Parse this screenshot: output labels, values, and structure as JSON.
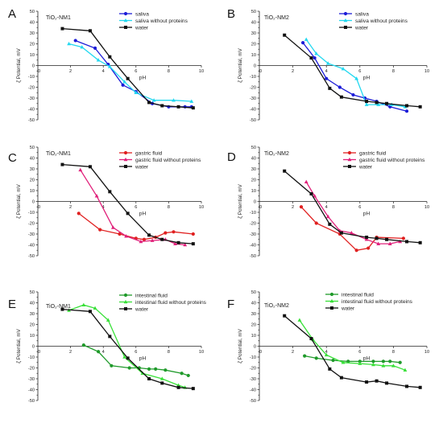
{
  "colors": {
    "saliva": "#1c1cd8",
    "saliva_np": "#22d8f0",
    "water": "#111111",
    "gastric": "#e02020",
    "gastric_np": "#e0207a",
    "intestinal": "#1f9a2a",
    "intestinal_np": "#38e038"
  },
  "chart_data": [
    {
      "type": "line",
      "letter": "A",
      "title": "TiO₂-NM1",
      "xlabel": "pH",
      "ylabel": "ζ Potential, mV",
      "xlim": [
        0,
        10
      ],
      "ylim": [
        -50,
        50
      ],
      "xticks": [
        2,
        4,
        6,
        8,
        10
      ],
      "yticks": [
        -50,
        -40,
        -30,
        -20,
        -10,
        0,
        10,
        20,
        30,
        40,
        50
      ],
      "series": [
        {
          "name": "saliva",
          "color": "#1c1cd8",
          "marker": "circle",
          "x": [
            2.3,
            3.5,
            4.3,
            5.2,
            6.0,
            7.0,
            8.0,
            9.0,
            9.4
          ],
          "y": [
            23,
            16,
            1,
            -18,
            -24,
            -35,
            -38,
            -38,
            -38
          ]
        },
        {
          "name": "saliva without proteins",
          "color": "#22d8f0",
          "marker": "triangle",
          "x": [
            1.9,
            2.7,
            3.7,
            4.4,
            5.3,
            6.0,
            7.1,
            8.3,
            9.4
          ],
          "y": [
            20,
            17,
            5,
            -1,
            -15,
            -25,
            -32,
            -32,
            -33
          ]
        },
        {
          "name": "water",
          "color": "#111111",
          "marker": "square",
          "x": [
            1.5,
            3.2,
            4.4,
            5.5,
            6.8,
            7.6,
            8.6,
            9.5
          ],
          "y": [
            34,
            32,
            8,
            -12,
            -34,
            -37,
            -38,
            -39
          ]
        }
      ]
    },
    {
      "type": "line",
      "letter": "B",
      "title": "TiO₂-NM2",
      "xlabel": "pH",
      "ylabel": "ζ Potential, mV",
      "xlim": [
        0,
        10
      ],
      "ylim": [
        -50,
        50
      ],
      "xticks": [
        2,
        4,
        6,
        8,
        10
      ],
      "yticks": [
        -50,
        -40,
        -30,
        -20,
        -10,
        0,
        10,
        20,
        30,
        40,
        50
      ],
      "series": [
        {
          "name": "saliva",
          "color": "#1c1cd8",
          "marker": "circle",
          "x": [
            2.6,
            3.3,
            4.0,
            4.8,
            5.6,
            6.3,
            7.0,
            7.8,
            8.8
          ],
          "y": [
            21,
            7,
            -12,
            -20,
            -27,
            -30,
            -33,
            -38,
            -42
          ]
        },
        {
          "name": "saliva without proteins",
          "color": "#22d8f0",
          "marker": "triangle",
          "x": [
            2.8,
            3.4,
            4.1,
            5.0,
            5.8,
            6.4,
            7.1,
            7.9,
            8.7
          ],
          "y": [
            24,
            11,
            2,
            -3,
            -12,
            -36,
            -36,
            -36,
            -38
          ]
        },
        {
          "name": "water",
          "color": "#111111",
          "marker": "square",
          "x": [
            1.5,
            3.1,
            4.2,
            4.9,
            6.4,
            7.0,
            7.6,
            8.8,
            9.6
          ],
          "y": [
            28,
            7,
            -21,
            -29,
            -33,
            -34,
            -35,
            -37,
            -38
          ]
        }
      ]
    },
    {
      "type": "line",
      "letter": "C",
      "title": "TiO₂-NM1",
      "xlabel": "pH",
      "ylabel": "ζ Potential, mV",
      "xlim": [
        0,
        10
      ],
      "ylim": [
        -50,
        50
      ],
      "xticks": [
        2,
        4,
        6,
        8,
        10
      ],
      "yticks": [
        -50,
        -40,
        -30,
        -20,
        -10,
        0,
        10,
        20,
        30,
        40,
        50
      ],
      "series": [
        {
          "name": "gastric fluid",
          "color": "#e02020",
          "marker": "circle",
          "x": [
            2.5,
            3.8,
            5.0,
            6.0,
            6.5,
            7.2,
            7.8,
            8.3,
            9.5
          ],
          "y": [
            -11,
            -26,
            -30,
            -34,
            -35,
            -33,
            -29,
            -28,
            -30
          ]
        },
        {
          "name": "gastric fluid without proteins",
          "color": "#e0207a",
          "marker": "triangle",
          "x": [
            2.6,
            3.6,
            4.6,
            5.4,
            6.3,
            7.0,
            7.8,
            8.4,
            9.0
          ],
          "y": [
            29,
            5,
            -24,
            -32,
            -37,
            -36,
            -35,
            -39,
            -40
          ]
        },
        {
          "name": "water",
          "color": "#111111",
          "marker": "square",
          "x": [
            1.5,
            3.2,
            4.4,
            5.5,
            6.8,
            7.6,
            8.6,
            9.5
          ],
          "y": [
            34,
            32,
            9,
            -11,
            -31,
            -35,
            -38,
            -39
          ]
        }
      ]
    },
    {
      "type": "line",
      "letter": "D",
      "title": "TiO₂-NM2",
      "xlabel": "pH",
      "ylabel": "ζ Potential, mV",
      "xlim": [
        0,
        10
      ],
      "ylim": [
        -50,
        50
      ],
      "xticks": [
        2,
        4,
        6,
        8,
        10
      ],
      "yticks": [
        -50,
        -40,
        -30,
        -20,
        -10,
        0,
        10,
        20,
        30,
        40,
        50
      ],
      "series": [
        {
          "name": "gastric fluid",
          "color": "#e02020",
          "marker": "circle",
          "x": [
            2.5,
            3.4,
            4.8,
            5.8,
            6.5,
            7.0,
            8.6
          ],
          "y": [
            -5,
            -20,
            -30,
            -45,
            -43,
            -33,
            -34
          ]
        },
        {
          "name": "gastric fluid without proteins",
          "color": "#e0207a",
          "marker": "triangle",
          "x": [
            2.8,
            3.3,
            4.1,
            4.8,
            5.5,
            6.4,
            7.1,
            7.8,
            8.4
          ],
          "y": [
            18,
            5,
            -14,
            -27,
            -29,
            -35,
            -39,
            -39,
            -37
          ]
        },
        {
          "name": "water",
          "color": "#111111",
          "marker": "square",
          "x": [
            1.5,
            3.1,
            4.2,
            4.9,
            6.4,
            7.0,
            7.6,
            8.8,
            9.6
          ],
          "y": [
            28,
            7,
            -21,
            -29,
            -33,
            -34,
            -35,
            -37,
            -38
          ]
        }
      ]
    },
    {
      "type": "line",
      "letter": "E",
      "title": "TiO₂-NM1",
      "xlabel": "pH",
      "ylabel": "ζ Potential, mV",
      "xlim": [
        0,
        10
      ],
      "ylim": [
        -50,
        50
      ],
      "xticks": [
        2,
        4,
        6,
        8,
        10
      ],
      "yticks": [
        -50,
        -40,
        -30,
        -20,
        -10,
        0,
        10,
        20,
        30,
        40,
        50
      ],
      "series": [
        {
          "name": "intestinal fluid",
          "color": "#1f9a2a",
          "marker": "circle",
          "x": [
            2.8,
            3.7,
            4.5,
            5.6,
            6.2,
            6.8,
            7.2,
            7.8,
            8.8,
            9.2
          ],
          "y": [
            1,
            -5,
            -18,
            -20,
            -20,
            -21,
            -21,
            -22,
            -25,
            -27
          ]
        },
        {
          "name": "intestinal fluid without proteins",
          "color": "#38e038",
          "marker": "triangle",
          "x": [
            1.9,
            2.8,
            3.5,
            4.3,
            5.3,
            6.4,
            7.6,
            8.6,
            9.0
          ],
          "y": [
            33,
            38,
            35,
            24,
            -10,
            -25,
            -30,
            -36,
            -38
          ]
        },
        {
          "name": "water",
          "color": "#111111",
          "marker": "square",
          "x": [
            1.5,
            3.2,
            4.4,
            5.5,
            6.8,
            7.6,
            8.6,
            9.5
          ],
          "y": [
            34,
            32,
            9,
            -11,
            -30,
            -34,
            -38,
            -39
          ]
        }
      ]
    },
    {
      "type": "line",
      "letter": "F",
      "title": "TiO₂-NM2",
      "xlabel": "pH",
      "ylabel": "ζ Potential, mV",
      "xlim": [
        0,
        10
      ],
      "ylim": [
        -50,
        50
      ],
      "xticks": [
        2,
        4,
        6,
        8,
        10
      ],
      "yticks": [
        -50,
        -40,
        -30,
        -20,
        -10,
        0,
        10,
        20,
        30,
        40,
        50
      ],
      "series": [
        {
          "name": "intestinal fluid",
          "color": "#1f9a2a",
          "marker": "circle",
          "x": [
            2.7,
            3.4,
            4.4,
            5.3,
            6.0,
            6.8,
            7.4,
            7.8,
            8.4
          ],
          "y": [
            -9,
            -11,
            -13,
            -14,
            -14,
            -14,
            -14,
            -14,
            -15
          ]
        },
        {
          "name": "intestinal fluid without proteins",
          "color": "#38e038",
          "marker": "triangle",
          "x": [
            2.4,
            3.2,
            4.0,
            5.0,
            6.0,
            6.8,
            7.4,
            8.0,
            8.7
          ],
          "y": [
            24,
            6,
            -8,
            -15,
            -16,
            -17,
            -18,
            -18,
            -22
          ]
        },
        {
          "name": "water",
          "color": "#111111",
          "marker": "square",
          "x": [
            1.5,
            3.1,
            4.2,
            4.9,
            6.4,
            7.0,
            7.6,
            8.8,
            9.6
          ],
          "y": [
            28,
            7,
            -21,
            -29,
            -33,
            -32,
            -34,
            -37,
            -38
          ]
        }
      ]
    }
  ]
}
